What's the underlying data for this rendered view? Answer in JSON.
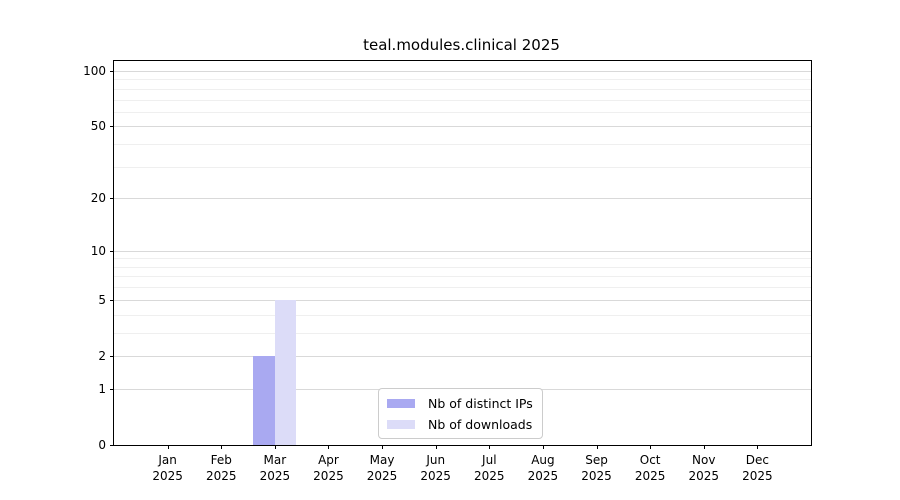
{
  "title": "teal.modules.clinical 2025",
  "chart_data": {
    "type": "bar",
    "title": "teal.modules.clinical 2025",
    "categories": [
      "Jan 2025",
      "Feb 2025",
      "Mar 2025",
      "Apr 2025",
      "May 2025",
      "Jun 2025",
      "Jul 2025",
      "Aug 2025",
      "Sep 2025",
      "Oct 2025",
      "Nov 2025",
      "Dec 2025"
    ],
    "x_tick_line1": [
      "Jan",
      "Feb",
      "Mar",
      "Apr",
      "May",
      "Jun",
      "Jul",
      "Aug",
      "Sep",
      "Oct",
      "Nov",
      "Dec"
    ],
    "x_tick_line2": [
      "2025",
      "2025",
      "2025",
      "2025",
      "2025",
      "2025",
      "2025",
      "2025",
      "2025",
      "2025",
      "2025",
      "2025"
    ],
    "series": [
      {
        "name": "Nb of distinct IPs",
        "color": "#a9a9f1",
        "values": [
          0,
          0,
          2,
          0,
          0,
          0,
          0,
          0,
          0,
          0,
          0,
          0
        ]
      },
      {
        "name": "Nb of downloads",
        "color": "#dcdcf8",
        "values": [
          0,
          0,
          5,
          0,
          0,
          0,
          0,
          0,
          0,
          0,
          0,
          0
        ]
      }
    ],
    "xlabel": "",
    "ylabel": "",
    "yscale": "log1p",
    "ylim": [
      0,
      113
    ],
    "yticks_major": [
      0,
      1,
      2,
      5,
      10,
      20,
      50,
      100
    ],
    "yticks_minor": [
      3,
      4,
      6,
      7,
      8,
      9,
      30,
      40,
      60,
      70,
      80,
      90
    ],
    "grid": "horizontal",
    "legend_position": "lower center"
  },
  "legend": {
    "items": [
      {
        "label": "Nb of distinct IPs",
        "color": "#a9a9f1"
      },
      {
        "label": "Nb of downloads",
        "color": "#dcdcf8"
      }
    ]
  }
}
